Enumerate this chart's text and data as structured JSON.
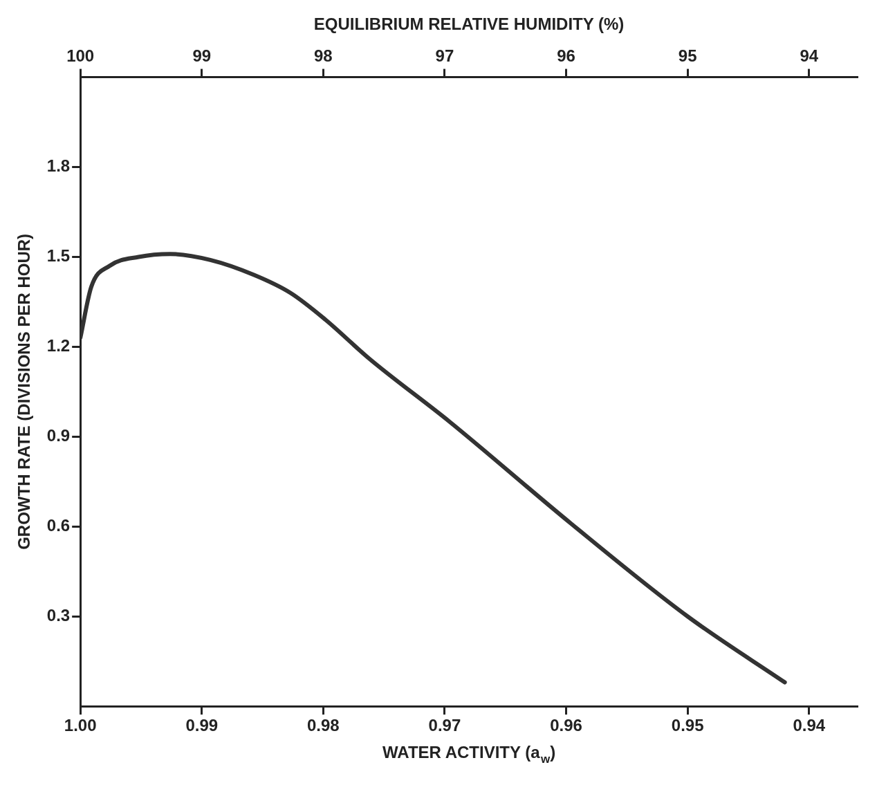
{
  "chart_data": {
    "type": "line",
    "xlabel": "WATER ACTIVITY (a$_{w}$)",
    "ylabel": "GROWTH RATE (DIVISIONS PER HOUR)",
    "x2label": "EQUILIBRIUM RELATIVE HUMIDITY (%)",
    "x": [
      1.0,
      0.9991,
      0.9976,
      0.9952,
      0.9926,
      0.9893,
      0.9857,
      0.9827,
      0.9798,
      0.9762,
      0.9696,
      0.9596,
      0.95,
      0.942
    ],
    "series": [
      {
        "color": "#333333",
        "values": [
          1.23,
          1.4,
          1.47,
          1.5,
          1.51,
          1.49,
          1.44,
          1.38,
          1.29,
          1.16,
          0.95,
          0.61,
          0.3,
          0.08
        ]
      }
    ],
    "xlim": [
      1.0,
      0.936
    ],
    "xticks": [
      {
        "value": 1.0,
        "label": "1.00"
      },
      {
        "value": 0.99,
        "label": "0.99"
      },
      {
        "value": 0.98,
        "label": "0.98"
      },
      {
        "value": 0.97,
        "label": "0.97"
      },
      {
        "value": 0.96,
        "label": "0.96"
      },
      {
        "value": 0.95,
        "label": "0.95"
      },
      {
        "value": 0.94,
        "label": "0.94"
      }
    ],
    "x2lim": [
      100,
      93.6
    ],
    "x2ticks": [
      100,
      99,
      98,
      97,
      96,
      95,
      94
    ],
    "ylim": [
      0,
      2.1
    ],
    "yticks": [
      0.3,
      0.6,
      0.9,
      1.2,
      1.5,
      1.8
    ],
    "grid": false,
    "legend": false,
    "marker": "none",
    "line_style": "solid"
  }
}
